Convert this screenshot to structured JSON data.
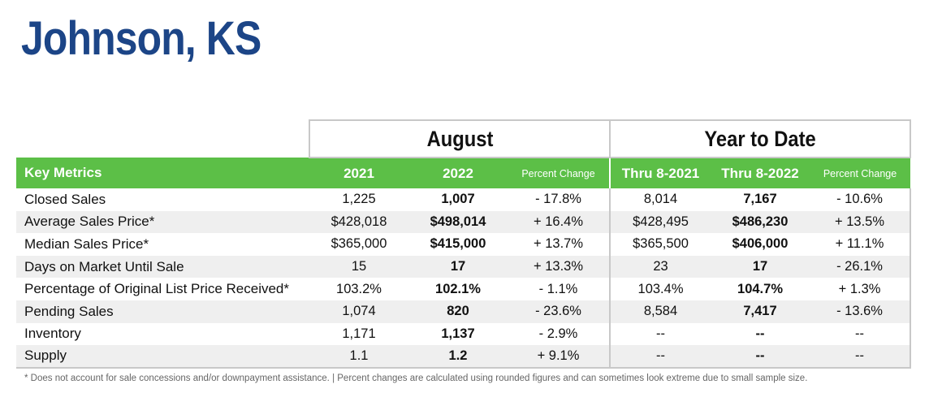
{
  "title": "Johnson, KS",
  "groups": {
    "august": "August",
    "ytd": "Year to Date"
  },
  "header": {
    "metric": "Key Metrics",
    "aug_prev": "2021",
    "aug_curr": "2022",
    "aug_pct": "Percent Change",
    "ytd_prev": "Thru 8-2021",
    "ytd_curr": "Thru 8-2022",
    "ytd_pct": "Percent Change"
  },
  "rows": [
    {
      "metric": "Closed Sales",
      "aug_prev": "1,225",
      "aug_curr": "1,007",
      "aug_pct": "- 17.8%",
      "ytd_prev": "8,014",
      "ytd_curr": "7,167",
      "ytd_pct": "- 10.6%"
    },
    {
      "metric": "Average Sales Price*",
      "aug_prev": "$428,018",
      "aug_curr": "$498,014",
      "aug_pct": "+ 16.4%",
      "ytd_prev": "$428,495",
      "ytd_curr": "$486,230",
      "ytd_pct": "+ 13.5%"
    },
    {
      "metric": "Median Sales Price*",
      "aug_prev": "$365,000",
      "aug_curr": "$415,000",
      "aug_pct": "+ 13.7%",
      "ytd_prev": "$365,500",
      "ytd_curr": "$406,000",
      "ytd_pct": "+ 11.1%"
    },
    {
      "metric": "Days on Market Until Sale",
      "aug_prev": "15",
      "aug_curr": "17",
      "aug_pct": "+ 13.3%",
      "ytd_prev": "23",
      "ytd_curr": "17",
      "ytd_pct": "- 26.1%"
    },
    {
      "metric": "Percentage of Original List Price Received*",
      "aug_prev": "103.2%",
      "aug_curr": "102.1%",
      "aug_pct": "- 1.1%",
      "ytd_prev": "103.4%",
      "ytd_curr": "104.7%",
      "ytd_pct": "+ 1.3%"
    },
    {
      "metric": "Pending Sales",
      "aug_prev": "1,074",
      "aug_curr": "820",
      "aug_pct": "- 23.6%",
      "ytd_prev": "8,584",
      "ytd_curr": "7,417",
      "ytd_pct": "- 13.6%"
    },
    {
      "metric": "Inventory",
      "aug_prev": "1,171",
      "aug_curr": "1,137",
      "aug_pct": "- 2.9%",
      "ytd_prev": "--",
      "ytd_curr": "--",
      "ytd_pct": "--"
    },
    {
      "metric": "Supply",
      "aug_prev": "1.1",
      "aug_curr": "1.2",
      "aug_pct": "+ 9.1%",
      "ytd_prev": "--",
      "ytd_curr": "--",
      "ytd_pct": "--"
    }
  ],
  "footnote": "* Does not account for sale concessions and/or downpayment assistance.  |  Percent changes are calculated using rounded figures and can sometimes look extreme due to small sample size."
}
